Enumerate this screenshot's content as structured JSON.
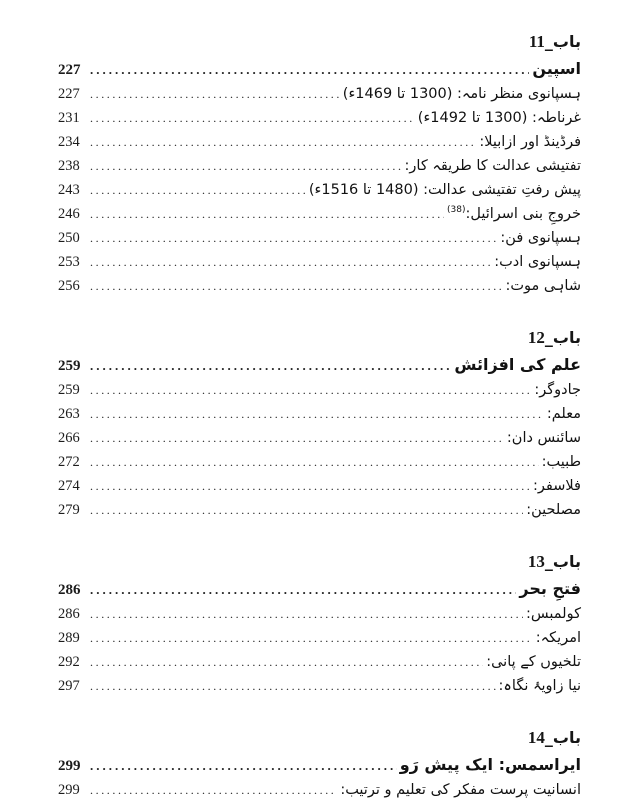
{
  "document": {
    "type": "table-of-contents",
    "language": "Urdu",
    "colors": {
      "background": "#ffffff",
      "text": "#161616"
    }
  },
  "toc": {
    "chapters": [
      {
        "chapter_label": "باب_",
        "chapter_number": "11",
        "title": {
          "text": "اسپین",
          "page": "227"
        },
        "entries": [
          {
            "text": "ہسپانوی منظر نامہ: (1300 تا 1469ء)",
            "page": "227"
          },
          {
            "text": "غرناطہ: (1300 تا 1492ء)",
            "page": "231"
          },
          {
            "text": "فرڈینڈ اور ازابیلا:",
            "page": "234"
          },
          {
            "text": "تفتیشی عدالت کا طریقہ کار:",
            "page": "238"
          },
          {
            "text": "پیش رفتِ تفتیشی عدالت: (1480 تا 1516ء)",
            "page": "243"
          },
          {
            "text": "خروجِ بنی اسرائیل:",
            "sup": "(38)",
            "page": "246"
          },
          {
            "text": "ہسپانوی فن:",
            "page": "250"
          },
          {
            "text": "ہسپانوی ادب:",
            "page": "253"
          },
          {
            "text": "شاہی موت:",
            "page": "256"
          }
        ]
      },
      {
        "chapter_label": "باب_",
        "chapter_number": "12",
        "title": {
          "text": "علم کی افزائش",
          "page": "259"
        },
        "entries": [
          {
            "text": "جادوگر:",
            "page": "259"
          },
          {
            "text": "معلم:",
            "page": "263"
          },
          {
            "text": "سائنس دان:",
            "page": "266"
          },
          {
            "text": "طبیب:",
            "page": "272"
          },
          {
            "text": "فلاسفر:",
            "page": "274"
          },
          {
            "text": "مصلحین:",
            "page": "279"
          }
        ]
      },
      {
        "chapter_label": "باب_",
        "chapter_number": "13",
        "title": {
          "text": "فتحِ بحر",
          "page": "286"
        },
        "entries": [
          {
            "text": "کولمبس:",
            "page": "286"
          },
          {
            "text": "امریکہ:",
            "page": "289"
          },
          {
            "text": "تلخیوں کے پانی:",
            "page": "292"
          },
          {
            "text": "نیا زاویۂ نگاہ:",
            "page": "297"
          }
        ]
      },
      {
        "chapter_label": "باب_",
        "chapter_number": "14",
        "title": {
          "text": "ایراسمس: ایک پیش رَو",
          "page": "299"
        },
        "entries": [
          {
            "text": "انسانیت پرست مفکر کی تعلیم و ترتیب:",
            "page": "299"
          }
        ]
      }
    ]
  }
}
